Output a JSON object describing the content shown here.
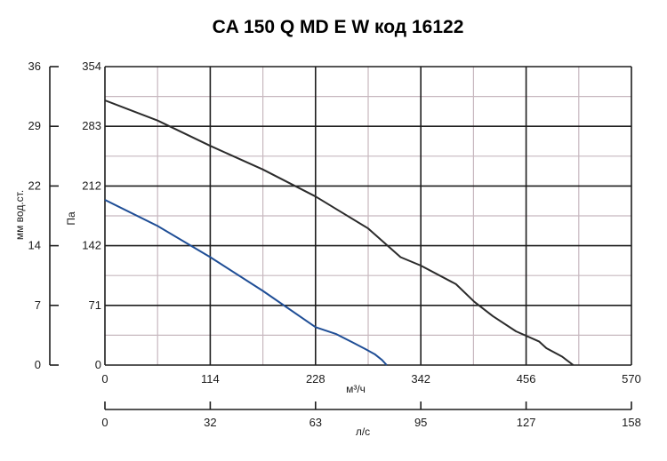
{
  "chart_data": {
    "type": "line",
    "title": "CA 150 Q MD E W код 16122",
    "x_axis": {
      "label": "м³/ч",
      "ticks": [
        "0",
        "114",
        "228",
        "342",
        "456",
        "570"
      ],
      "range": [
        0,
        570
      ]
    },
    "x2_axis": {
      "label": "л/с",
      "ticks": [
        "0",
        "32",
        "63",
        "95",
        "127",
        "158"
      ],
      "range": [
        0,
        158
      ]
    },
    "y_axis": {
      "label": "Па",
      "ticks": [
        "0",
        "71",
        "142",
        "212",
        "283",
        "354"
      ],
      "range": [
        0,
        354
      ]
    },
    "y2_axis": {
      "label": "мм вод.ст.",
      "ticks": [
        "0",
        "7",
        "14",
        "22",
        "29",
        "36"
      ],
      "range": [
        0,
        36
      ]
    },
    "grid": true,
    "series": [
      {
        "color": "#2b2b2b",
        "points": [
          [
            0,
            314
          ],
          [
            57,
            290
          ],
          [
            114,
            260
          ],
          [
            171,
            232
          ],
          [
            228,
            200
          ],
          [
            285,
            162
          ],
          [
            320,
            128
          ],
          [
            342,
            118
          ],
          [
            380,
            96
          ],
          [
            400,
            75
          ],
          [
            420,
            58
          ],
          [
            445,
            40
          ],
          [
            470,
            28
          ],
          [
            478,
            20
          ],
          [
            495,
            10
          ],
          [
            507,
            0
          ]
        ]
      },
      {
        "color": "#1f4e96",
        "points": [
          [
            0,
            196
          ],
          [
            57,
            165
          ],
          [
            114,
            128
          ],
          [
            171,
            88
          ],
          [
            228,
            45
          ],
          [
            250,
            37
          ],
          [
            268,
            27
          ],
          [
            282,
            19
          ],
          [
            292,
            13
          ],
          [
            300,
            6
          ],
          [
            305,
            0
          ]
        ]
      }
    ]
  }
}
